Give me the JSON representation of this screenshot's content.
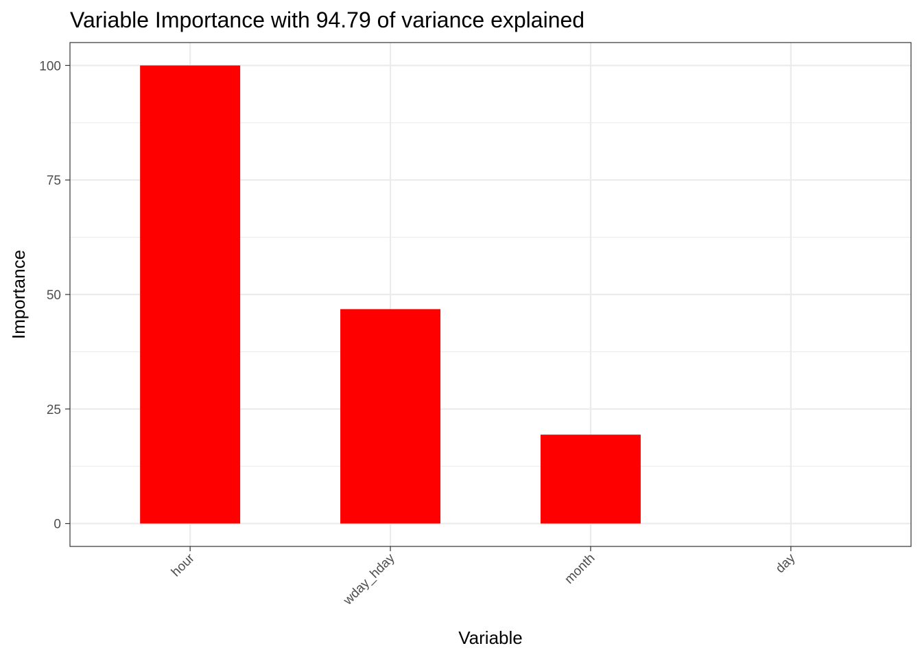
{
  "chart_data": {
    "type": "bar",
    "title": "Variable Importance with 94.79 of variance explained",
    "xlabel": "Variable",
    "ylabel": "Importance",
    "categories": [
      "hour",
      "wday_hday",
      "month",
      "day"
    ],
    "values": [
      100,
      46.8,
      19.4,
      0
    ],
    "ylim": [
      -5,
      105
    ],
    "yticks": [
      0,
      25,
      50,
      75,
      100
    ],
    "grid": true,
    "legend": "none",
    "bar_color": "#FF0000",
    "grid_color": "#EBEBEB",
    "panel_border_color": "#333333",
    "tick_label_color": "#4D4D4D"
  }
}
